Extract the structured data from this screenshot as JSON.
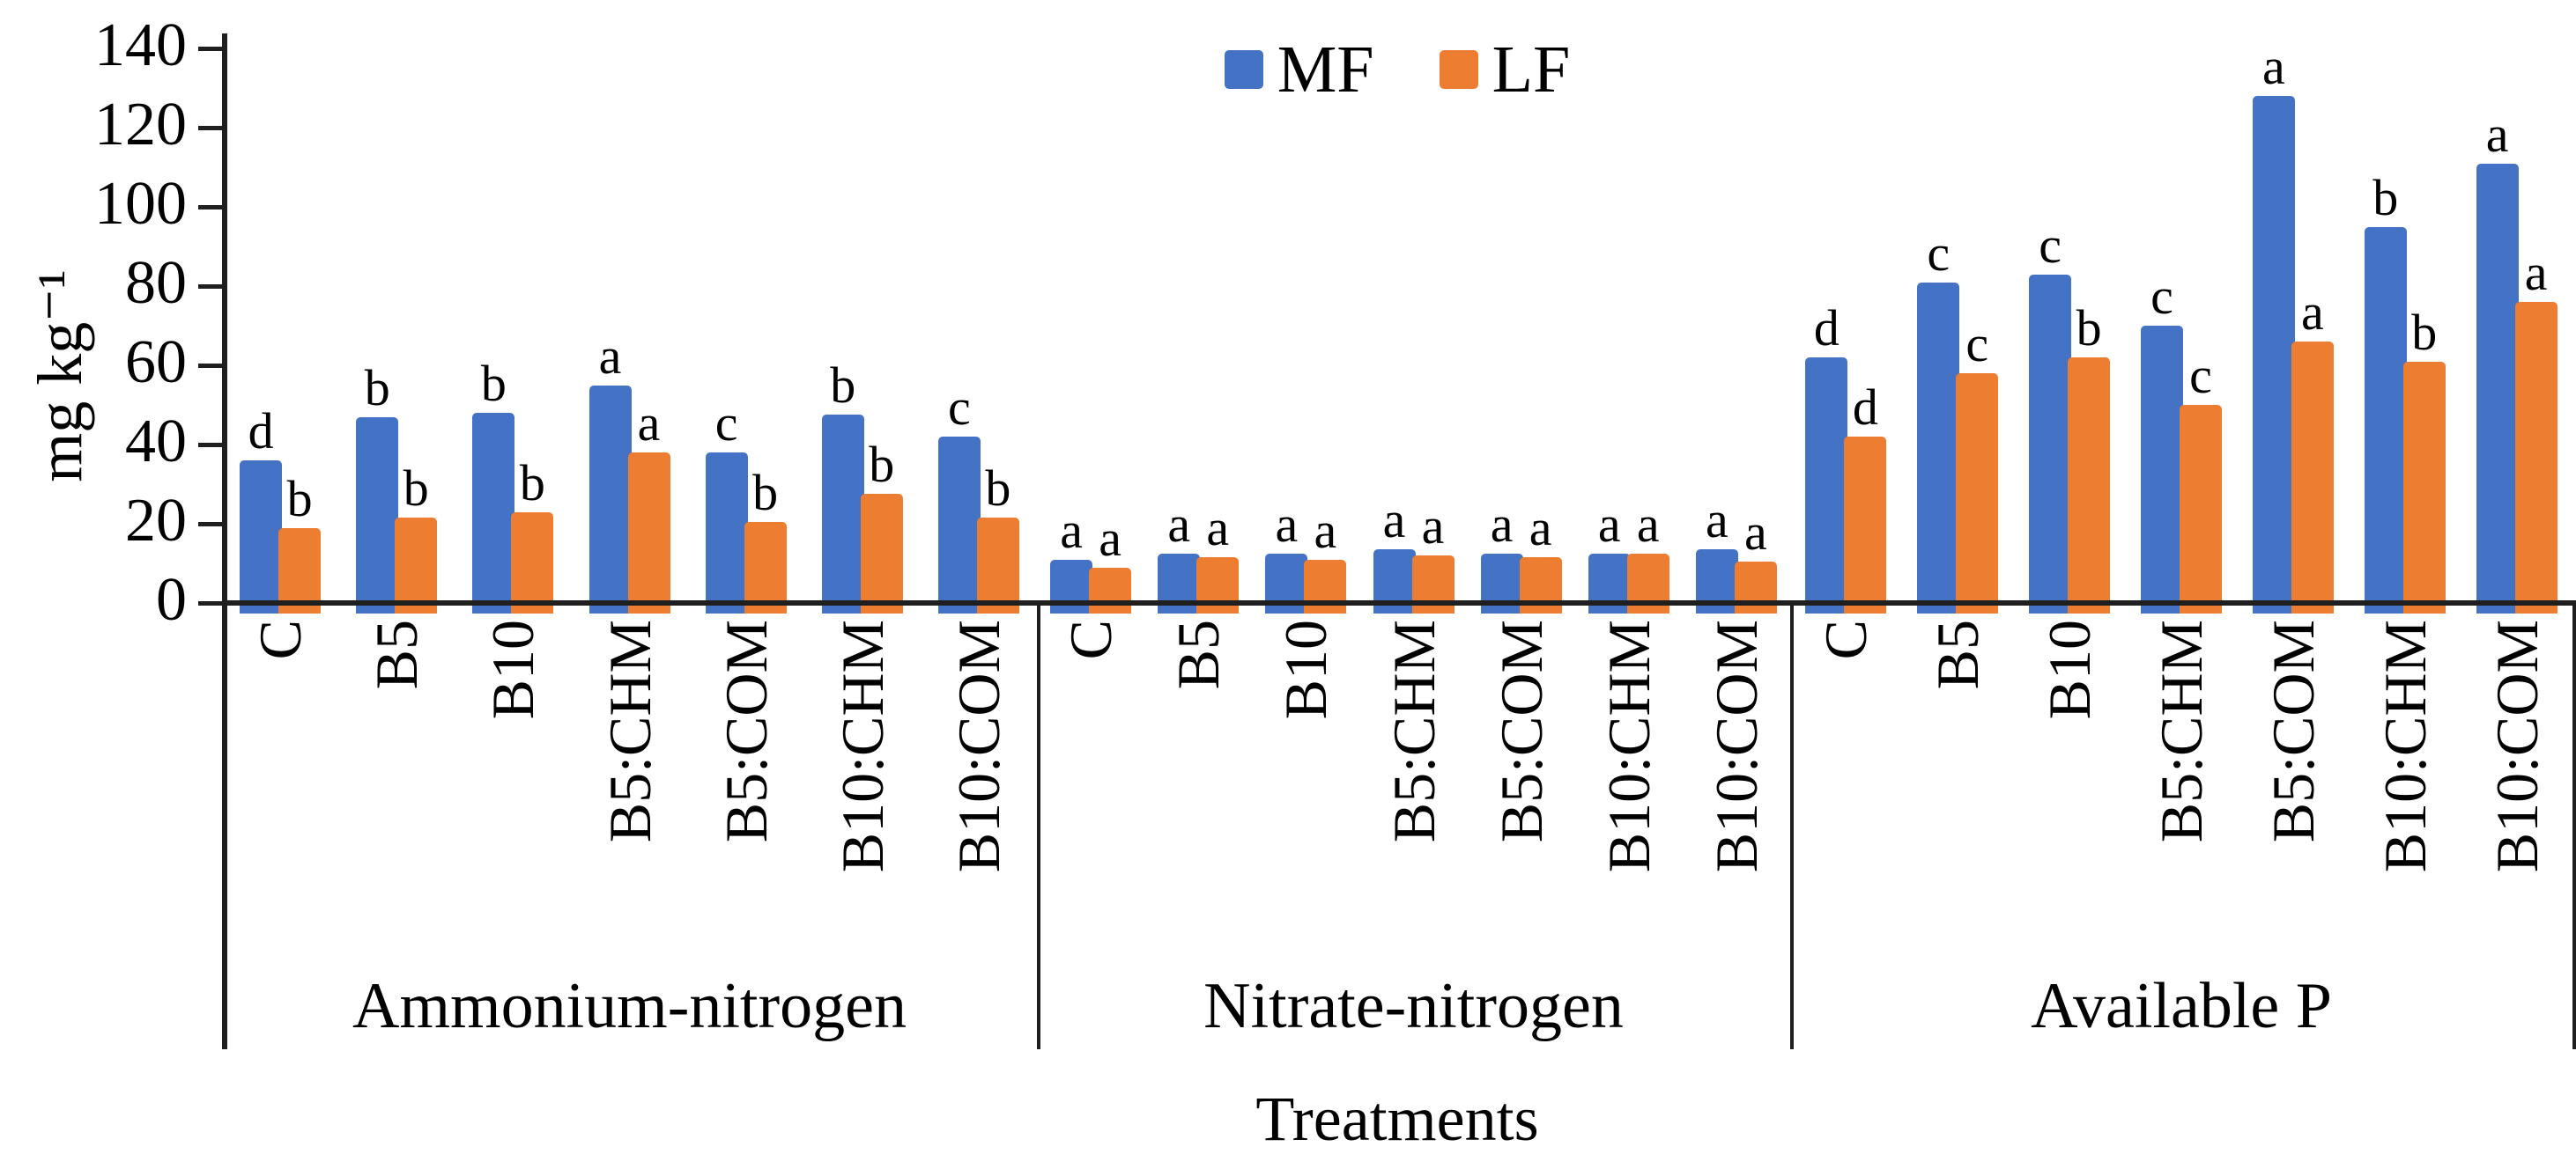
{
  "chart_data": {
    "type": "bar",
    "title": "",
    "ylabel": "mg kg⁻¹",
    "xlabel": "Treatments",
    "ylim": [
      0,
      140
    ],
    "yticks": [
      0,
      20,
      40,
      60,
      80,
      100,
      120,
      140
    ],
    "grid": false,
    "legend_position": "top-center",
    "legend": [
      {
        "label": "MF",
        "color": "#4472C4"
      },
      {
        "label": "LF",
        "color": "#ED7D31"
      }
    ],
    "treatments": [
      "C",
      "B5",
      "B10",
      "B5:CHM",
      "B5:COM",
      "B10:CHM",
      "B10:COM"
    ],
    "groups": [
      {
        "name": "Ammonium-nitrogen",
        "series": [
          {
            "name": "MF",
            "values": [
              36,
              47,
              48,
              55,
              38,
              47.5,
              42
            ],
            "letters": [
              "d",
              "b",
              "b",
              "a",
              "c",
              "b",
              "c"
            ]
          },
          {
            "name": "LF",
            "values": [
              19,
              21.5,
              23,
              38,
              20.5,
              27.5,
              21.5
            ],
            "letters": [
              "b",
              "b",
              "b",
              "a",
              "b",
              "b",
              "b"
            ]
          }
        ]
      },
      {
        "name": "Nitrate-nitrogen",
        "series": [
          {
            "name": "MF",
            "values": [
              11,
              12.5,
              12.5,
              13.5,
              12.5,
              12.5,
              13.5
            ],
            "letters": [
              "a",
              "a",
              "a",
              "a",
              "a",
              "a",
              "a"
            ]
          },
          {
            "name": "LF",
            "values": [
              9,
              11.5,
              11,
              12,
              11.5,
              12.5,
              10.5
            ],
            "letters": [
              "a",
              "a",
              "a",
              "a",
              "a",
              "a",
              "a"
            ]
          }
        ]
      },
      {
        "name": "Available P",
        "series": [
          {
            "name": "MF",
            "values": [
              62,
              81,
              83,
              70,
              128,
              95,
              111
            ],
            "letters": [
              "d",
              "c",
              "c",
              "c",
              "a",
              "b",
              "a"
            ]
          },
          {
            "name": "LF",
            "values": [
              42,
              58,
              62,
              50,
              66,
              61,
              76
            ],
            "letters": [
              "d",
              "c",
              "b",
              "c",
              "a",
              "b",
              "a"
            ]
          }
        ]
      }
    ]
  }
}
